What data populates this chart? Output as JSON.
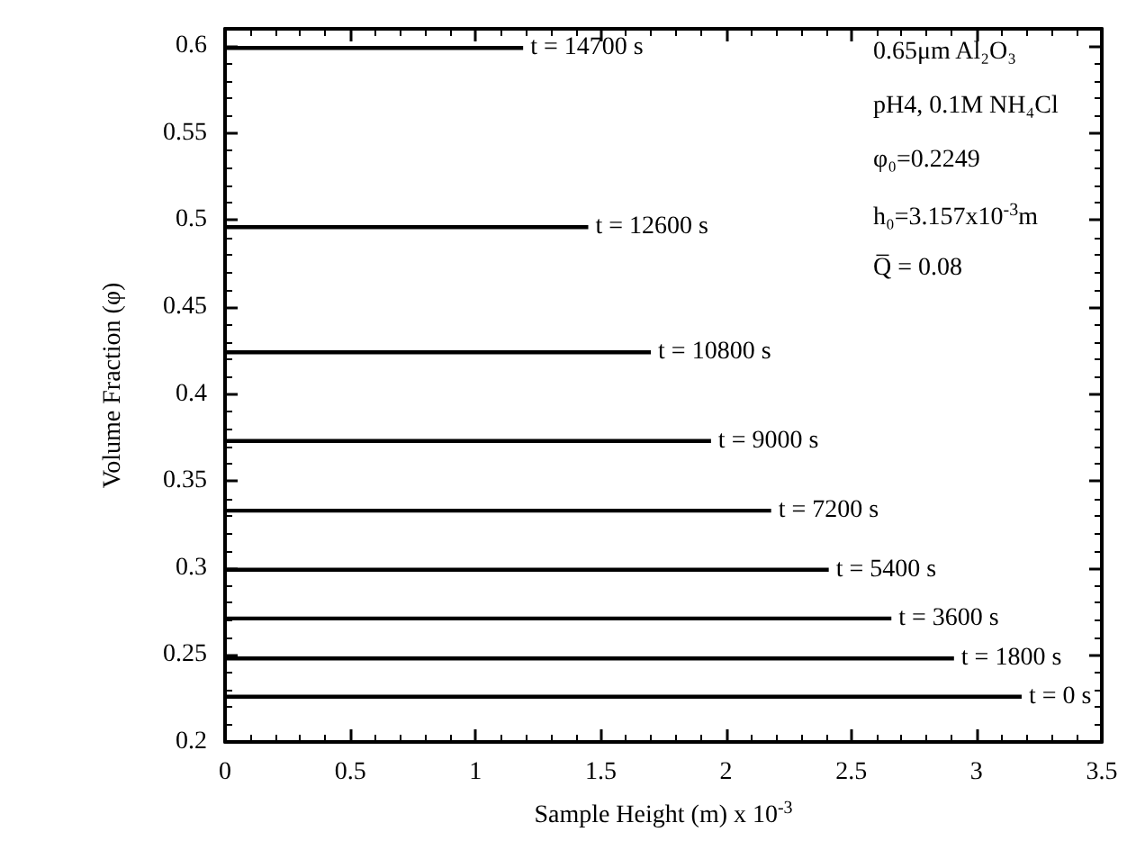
{
  "chart_data": {
    "type": "line",
    "xlabel": "Sample Height (m) x 10$^{-3}$",
    "ylabel": "Volume Fraction (φ)",
    "xlim": [
      0,
      3.5
    ],
    "xticks": [
      0,
      0.5,
      1,
      1.5,
      2,
      2.5,
      3,
      3.5
    ],
    "ylim": [
      0.2,
      0.61
    ],
    "yticks": [
      0.2,
      0.25,
      0.3,
      0.35,
      0.4,
      0.45,
      0.5,
      0.55,
      0.6
    ],
    "grid": false,
    "legend": "right",
    "marker": "none",
    "line_style": "solid",
    "series": [
      {
        "name": "t = 14700 s",
        "color": "#000000",
        "x": [
          0,
          1.19
        ],
        "values": [
          0.599,
          0.599
        ]
      },
      {
        "name": "t = 12600 s",
        "color": "#000000",
        "x": [
          0,
          1.45
        ],
        "values": [
          0.496,
          0.496
        ]
      },
      {
        "name": "t = 10800 s",
        "color": "#000000",
        "x": [
          0,
          1.7
        ],
        "values": [
          0.424,
          0.424
        ]
      },
      {
        "name": "t = 9000 s",
        "color": "#000000",
        "x": [
          0,
          1.94
        ],
        "values": [
          0.373,
          0.373
        ]
      },
      {
        "name": "t = 7200 s",
        "color": "#000000",
        "x": [
          0,
          2.18
        ],
        "values": [
          0.333,
          0.333
        ]
      },
      {
        "name": "t = 5400 s",
        "color": "#000000",
        "x": [
          0,
          2.41
        ],
        "values": [
          0.299,
          0.299
        ]
      },
      {
        "name": "t = 3600 s",
        "color": "#000000",
        "x": [
          0,
          2.66
        ],
        "values": [
          0.271,
          0.271
        ]
      },
      {
        "name": "t = 1800 s",
        "color": "#000000",
        "x": [
          0,
          2.91
        ],
        "values": [
          0.248,
          0.248
        ]
      },
      {
        "name": "t = 0 s",
        "color": "#000000",
        "x": [
          0,
          3.18
        ],
        "values": [
          0.226,
          0.226
        ]
      }
    ],
    "annotations": [
      "0.65μm Al₂O₃",
      "pH4, 0.1M NH₄Cl",
      "φ₀=0.2249",
      "h₀=3.157x10$^{-3}$m",
      "Q̅ = 0.08"
    ]
  }
}
